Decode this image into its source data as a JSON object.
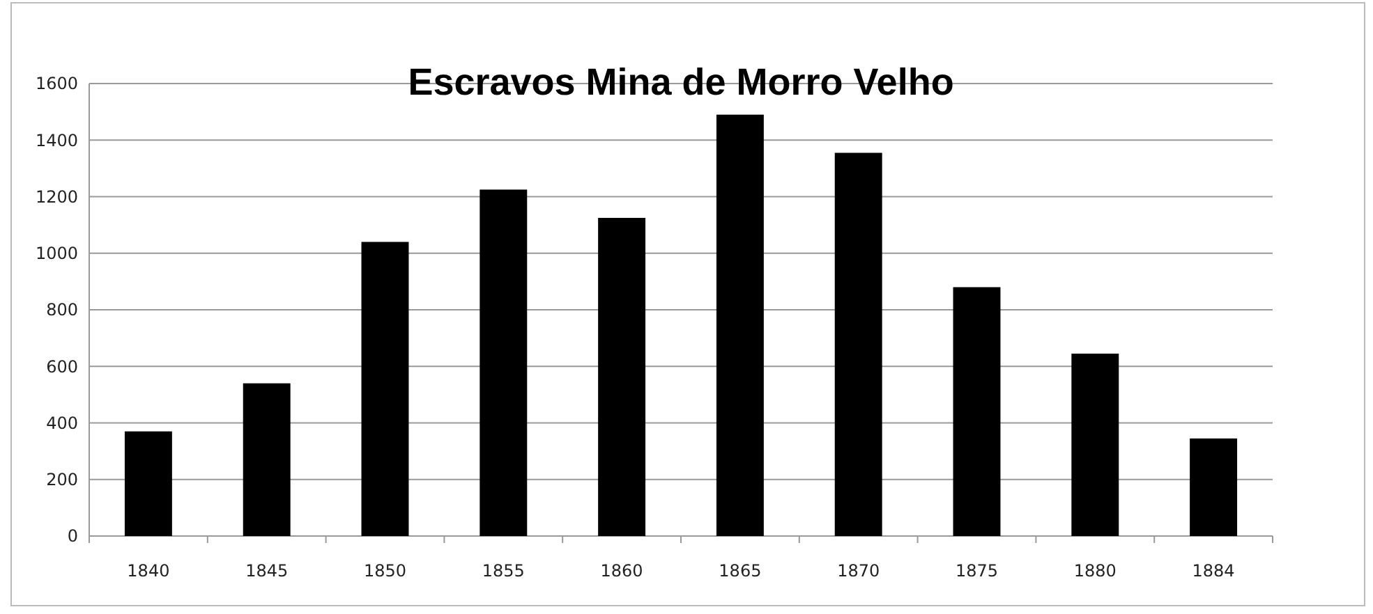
{
  "chart_data": {
    "type": "bar",
    "title": "Escravos Mina de Morro Velho",
    "categories": [
      "1840",
      "1845",
      "1850",
      "1855",
      "1860",
      "1865",
      "1870",
      "1875",
      "1880",
      "1884"
    ],
    "values": [
      370,
      540,
      1040,
      1225,
      1125,
      1490,
      1355,
      880,
      645,
      345
    ],
    "color": "#000000",
    "ylim": [
      0,
      1600
    ],
    "yticks": [
      0,
      200,
      400,
      600,
      800,
      1000,
      1200,
      1400,
      1600
    ],
    "grid": "y"
  }
}
